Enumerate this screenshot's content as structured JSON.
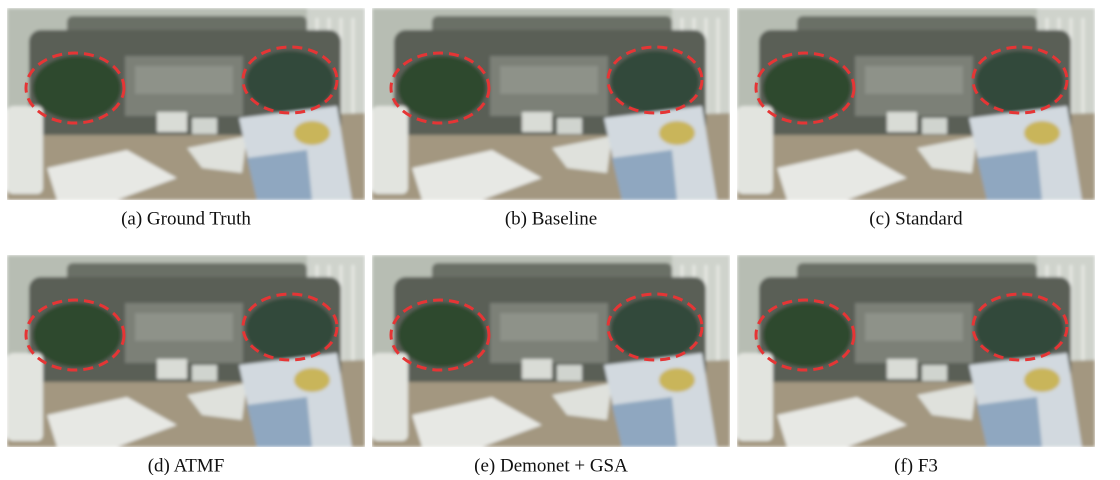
{
  "figure": {
    "panels": [
      {
        "caption": "(a) Ground Truth"
      },
      {
        "caption": "(b) Baseline"
      },
      {
        "caption": "(c) Standard"
      },
      {
        "caption": "(d) ATMF"
      },
      {
        "caption": "(e) Demonet + GSA"
      },
      {
        "caption": "(f) F3"
      }
    ]
  }
}
